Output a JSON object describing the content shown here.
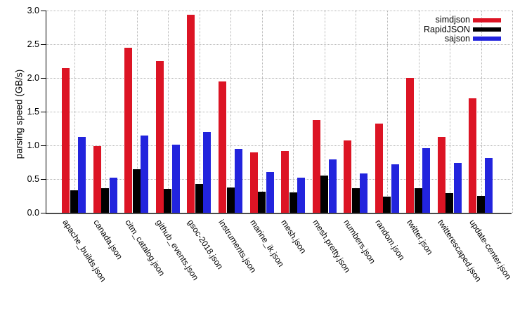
{
  "chart_data": {
    "type": "bar",
    "title": "",
    "xlabel": "",
    "ylabel": "parsing speed (GB/s)",
    "ylim": [
      0,
      3.0
    ],
    "yticks": [
      0.0,
      0.5,
      1.0,
      1.5,
      2.0,
      2.5,
      3.0
    ],
    "grid": "dotted",
    "legend_position": "top-right",
    "categories": [
      "apache_builds.json",
      "canada.json",
      "citm_catalog.json",
      "github_events.json",
      "gsoc-2018.json",
      "instruments.json",
      "marine_ik.json",
      "mesh.json",
      "mesh.pretty.json",
      "numbers.json",
      "random.json",
      "twitter.json",
      "twitterescaped.json",
      "update-center.json"
    ],
    "series": [
      {
        "name": "simdjson",
        "color": "#dc1424",
        "values": [
          2.15,
          0.99,
          2.45,
          2.25,
          2.94,
          1.95,
          0.9,
          0.92,
          1.37,
          1.07,
          1.32,
          2.0,
          1.12,
          1.7
        ]
      },
      {
        "name": "RapidJSON",
        "color": "#000000",
        "values": [
          0.33,
          0.36,
          0.65,
          0.35,
          0.43,
          0.38,
          0.31,
          0.3,
          0.55,
          0.36,
          0.24,
          0.36,
          0.29,
          0.25
        ]
      },
      {
        "name": "sajson",
        "color": "#2224dd",
        "values": [
          1.12,
          0.52,
          1.15,
          1.01,
          1.2,
          0.95,
          0.6,
          0.52,
          0.79,
          0.58,
          0.72,
          0.96,
          0.74,
          0.81
        ]
      }
    ],
    "colors": {
      "grid": "#b5b5b5",
      "axis_x": "#4a4a4a",
      "axis_y": "#000000",
      "background": "#ffffff"
    }
  }
}
